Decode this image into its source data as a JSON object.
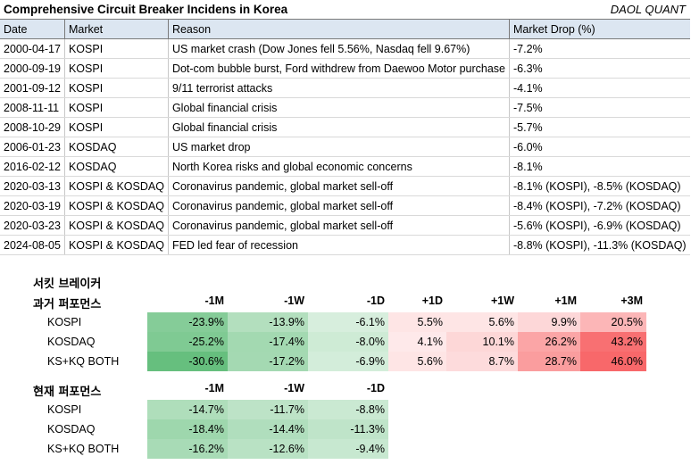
{
  "header": {
    "title": "Comprehensive Circuit Breaker Incidens in Korea",
    "brand": "DAOL QUANT"
  },
  "incidents": {
    "columns": [
      "Date",
      "Market",
      "Reason",
      "Market Drop (%)"
    ],
    "rows": [
      [
        "2000-04-17",
        "KOSPI",
        "US market crash (Dow Jones fell 5.56%, Nasdaq fell 9.67%)",
        "-7.2%"
      ],
      [
        "2000-09-19",
        "KOSPI",
        "Dot-com bubble burst, Ford withdrew from Daewoo Motor purchase",
        "-6.3%"
      ],
      [
        "2001-09-12",
        "KOSPI",
        "9/11 terrorist attacks",
        "-4.1%"
      ],
      [
        "2008-11-11",
        "KOSPI",
        "Global financial crisis",
        "-7.5%"
      ],
      [
        "2008-10-29",
        "KOSPI",
        "Global financial crisis",
        "-5.7%"
      ],
      [
        "2006-01-23",
        "KOSDAQ",
        "US market drop",
        "-6.0%"
      ],
      [
        "2016-02-12",
        "KOSDAQ",
        "North Korea risks and global economic concerns",
        "-8.1%"
      ],
      [
        "2020-03-13",
        "KOSPI & KOSDAQ",
        "Coronavirus pandemic, global market sell-off",
        "-8.1% (KOSPI), -8.5% (KOSDAQ)"
      ],
      [
        "2020-03-19",
        "KOSPI & KOSDAQ",
        "Coronavirus pandemic, global market sell-off",
        "-8.4% (KOSPI), -7.2% (KOSDAQ)"
      ],
      [
        "2020-03-23",
        "KOSPI & KOSDAQ",
        "Coronavirus pandemic, global market sell-off",
        "-5.6% (KOSPI), -6.9% (KOSDAQ)"
      ],
      [
        "2024-08-05",
        "KOSPI & KOSDAQ",
        "FED led fear of recession",
        "-8.8% (KOSPI), -11.3% (KOSDAQ)"
      ]
    ]
  },
  "past": {
    "title_line1": "서킷 브레이커",
    "title_line2": "과거 퍼포먼스",
    "columns": [
      "-1M",
      "-1W",
      "-1D",
      "+1D",
      "+1W",
      "+1M",
      "+3M"
    ],
    "rows": [
      {
        "label": "KOSPI",
        "values": [
          "-23.9%",
          "-13.9%",
          "-6.1%",
          "5.5%",
          "5.6%",
          "9.9%",
          "20.5%"
        ],
        "nums": [
          -23.9,
          -13.9,
          -6.1,
          5.5,
          5.6,
          9.9,
          20.5
        ]
      },
      {
        "label": "KOSDAQ",
        "values": [
          "-25.2%",
          "-17.4%",
          "-8.0%",
          "4.1%",
          "10.1%",
          "26.2%",
          "43.2%"
        ],
        "nums": [
          -25.2,
          -17.4,
          -8.0,
          4.1,
          10.1,
          26.2,
          43.2
        ]
      },
      {
        "label": "KS+KQ BOTH",
        "values": [
          "-30.6%",
          "-17.2%",
          "-6.9%",
          "5.6%",
          "8.7%",
          "28.7%",
          "46.0%"
        ],
        "nums": [
          -30.6,
          -17.2,
          -6.9,
          5.6,
          8.7,
          28.7,
          46.0
        ]
      }
    ]
  },
  "current": {
    "title": "현재 퍼포먼스",
    "columns": [
      "-1M",
      "-1W",
      "-1D"
    ],
    "rows": [
      {
        "label": "KOSPI",
        "values": [
          "-14.7%",
          "-11.7%",
          "-8.8%"
        ],
        "nums": [
          -14.7,
          -11.7,
          -8.8
        ]
      },
      {
        "label": "KOSDAQ",
        "values": [
          "-18.4%",
          "-14.4%",
          "-11.3%"
        ],
        "nums": [
          -18.4,
          -14.4,
          -11.3
        ]
      },
      {
        "label": "KS+KQ BOTH",
        "values": [
          "-16.2%",
          "-12.6%",
          "-9.4%"
        ],
        "nums": [
          -16.2,
          -12.6,
          -9.4
        ]
      }
    ]
  },
  "colors": {
    "negative_max": "#63be7b",
    "positive_max": "#f8696b",
    "header_bg": "#dce6f1"
  }
}
